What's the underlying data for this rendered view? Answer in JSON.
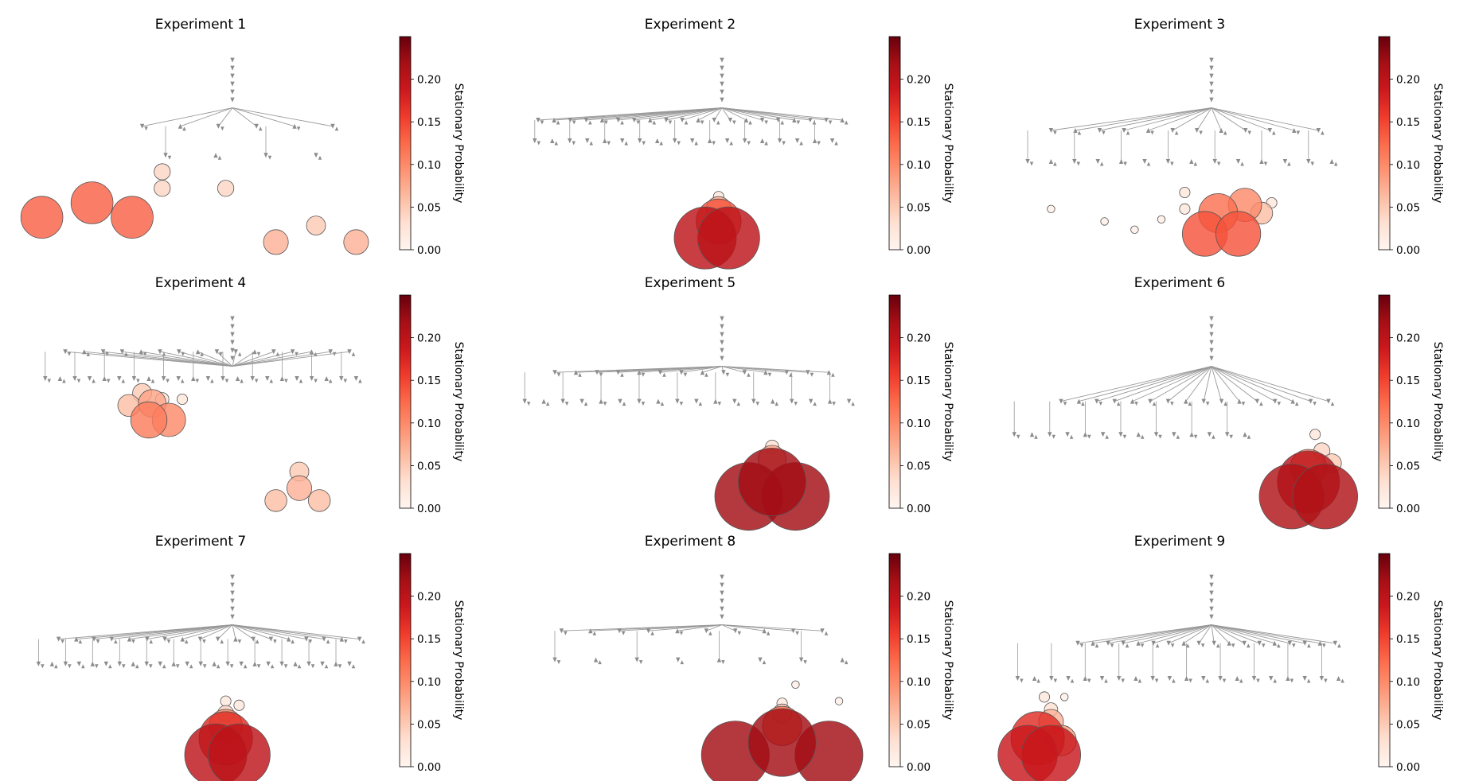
{
  "colors": {
    "edge": "#999999",
    "arrowhead": "#8c8c8c",
    "node_outline": "#555555",
    "colormap": [
      "#fff5f0",
      "#fee0d2",
      "#fcbba1",
      "#fc9272",
      "#fb6a4a",
      "#ef3b2c",
      "#cb181d",
      "#a50f15",
      "#67000d"
    ]
  },
  "chart_data": [
    {
      "type": "network",
      "title": "Experiment 1",
      "colorbar": {
        "label": "Stationary Probability",
        "range": [
          0,
          0.25
        ],
        "ticks": [
          "0.00",
          "0.05",
          "0.10",
          "0.15",
          "0.20"
        ]
      },
      "tree_rows": [
        {
          "y": 0.38,
          "count": 6,
          "span": [
            0.33,
            0.9
          ]
        },
        {
          "y": 0.52,
          "count": 4,
          "span": [
            0.4,
            0.85
          ]
        }
      ],
      "top_nodes": [
        {
          "x": 0.03,
          "y": 0.82,
          "p": 0.13
        },
        {
          "x": 0.18,
          "y": 0.75,
          "p": 0.13
        },
        {
          "x": 0.3,
          "y": 0.82,
          "p": 0.13
        },
        {
          "x": 0.39,
          "y": 0.6,
          "p": 0.04
        },
        {
          "x": 0.39,
          "y": 0.68,
          "p": 0.04
        },
        {
          "x": 0.58,
          "y": 0.68,
          "p": 0.04
        },
        {
          "x": 0.73,
          "y": 0.94,
          "p": 0.07
        },
        {
          "x": 0.85,
          "y": 0.86,
          "p": 0.05
        },
        {
          "x": 0.97,
          "y": 0.94,
          "p": 0.07
        }
      ]
    },
    {
      "type": "network",
      "title": "Experiment 2",
      "colorbar": {
        "label": "Stationary Probability",
        "range": [
          0,
          0.25
        ],
        "ticks": [
          "0.00",
          "0.05",
          "0.10",
          "0.15",
          "0.20"
        ]
      },
      "tree_rows": [
        {
          "y": 0.35,
          "count": 20,
          "span": [
            0.05,
            0.96
          ]
        },
        {
          "y": 0.45,
          "count": 18,
          "span": [
            0.04,
            0.93
          ]
        }
      ],
      "top_nodes": [
        {
          "x": 0.55,
          "y": 0.92,
          "p": 0.2
        },
        {
          "x": 0.62,
          "y": 0.92,
          "p": 0.2
        },
        {
          "x": 0.59,
          "y": 0.84,
          "p": 0.14
        },
        {
          "x": 0.59,
          "y": 0.78,
          "p": 0.07
        },
        {
          "x": 0.59,
          "y": 0.72,
          "p": 0.02
        }
      ]
    },
    {
      "type": "network",
      "title": "Experiment 3",
      "colorbar": {
        "label": "Stationary Probability",
        "range": [
          0,
          0.25
        ],
        "ticks": [
          "0.00",
          "0.05",
          "0.10",
          "0.15",
          "0.20"
        ]
      },
      "tree_rows": [
        {
          "y": 0.4,
          "count": 12,
          "span": [
            0.12,
            0.92
          ]
        },
        {
          "y": 0.55,
          "count": 14,
          "span": [
            0.05,
            0.96
          ]
        }
      ],
      "top_nodes": [
        {
          "x": 0.58,
          "y": 0.9,
          "p": 0.14
        },
        {
          "x": 0.68,
          "y": 0.9,
          "p": 0.14
        },
        {
          "x": 0.62,
          "y": 0.8,
          "p": 0.12
        },
        {
          "x": 0.7,
          "y": 0.76,
          "p": 0.1
        },
        {
          "x": 0.75,
          "y": 0.8,
          "p": 0.06
        },
        {
          "x": 0.78,
          "y": 0.75,
          "p": 0.02
        },
        {
          "x": 0.52,
          "y": 0.7,
          "p": 0.02
        },
        {
          "x": 0.52,
          "y": 0.78,
          "p": 0.02
        },
        {
          "x": 0.12,
          "y": 0.78,
          "p": 0.01
        },
        {
          "x": 0.28,
          "y": 0.84,
          "p": 0.01
        },
        {
          "x": 0.37,
          "y": 0.88,
          "p": 0.01
        },
        {
          "x": 0.45,
          "y": 0.83,
          "p": 0.01
        }
      ]
    },
    {
      "type": "network",
      "title": "Experiment 4",
      "colorbar": {
        "label": "Stationary Probability",
        "range": [
          0,
          0.25
        ],
        "ticks": [
          "0.00",
          "0.05",
          "0.10",
          "0.15",
          "0.20"
        ]
      },
      "tree_rows": [
        {
          "y": 0.22,
          "count": 16,
          "span": [
            0.1,
            0.95
          ]
        },
        {
          "y": 0.35,
          "count": 22,
          "span": [
            0.04,
            0.97
          ]
        }
      ],
      "top_nodes": [
        {
          "x": 0.33,
          "y": 0.42,
          "p": 0.05
        },
        {
          "x": 0.36,
          "y": 0.47,
          "p": 0.08
        },
        {
          "x": 0.29,
          "y": 0.48,
          "p": 0.06
        },
        {
          "x": 0.39,
          "y": 0.45,
          "p": 0.03
        },
        {
          "x": 0.35,
          "y": 0.55,
          "p": 0.11
        },
        {
          "x": 0.41,
          "y": 0.55,
          "p": 0.1
        },
        {
          "x": 0.45,
          "y": 0.45,
          "p": 0.02
        },
        {
          "x": 0.8,
          "y": 0.8,
          "p": 0.05
        },
        {
          "x": 0.73,
          "y": 0.94,
          "p": 0.06
        },
        {
          "x": 0.8,
          "y": 0.88,
          "p": 0.07
        },
        {
          "x": 0.86,
          "y": 0.94,
          "p": 0.06
        }
      ]
    },
    {
      "type": "network",
      "title": "Experiment 5",
      "colorbar": {
        "label": "Stationary Probability",
        "range": [
          0,
          0.25
        ],
        "ticks": [
          "0.00",
          "0.05",
          "0.10",
          "0.15",
          "0.20"
        ]
      },
      "tree_rows": [
        {
          "y": 0.32,
          "count": 14,
          "span": [
            0.1,
            0.92
          ]
        },
        {
          "y": 0.46,
          "count": 18,
          "span": [
            0.01,
            0.98
          ]
        }
      ],
      "top_nodes": [
        {
          "x": 0.68,
          "y": 0.92,
          "p": 0.22
        },
        {
          "x": 0.82,
          "y": 0.92,
          "p": 0.22
        },
        {
          "x": 0.75,
          "y": 0.85,
          "p": 0.22
        },
        {
          "x": 0.75,
          "y": 0.74,
          "p": 0.08
        },
        {
          "x": 0.75,
          "y": 0.68,
          "p": 0.03
        }
      ]
    },
    {
      "type": "network",
      "title": "Experiment 6",
      "colorbar": {
        "label": "Stationary Probability",
        "range": [
          0,
          0.25
        ],
        "ticks": [
          "0.00",
          "0.05",
          "0.10",
          "0.15",
          "0.20"
        ]
      },
      "tree_rows": [
        {
          "y": 0.46,
          "count": 16,
          "span": [
            0.15,
            0.95
          ]
        },
        {
          "y": 0.62,
          "count": 14,
          "span": [
            0.01,
            0.7
          ]
        }
      ],
      "top_nodes": [
        {
          "x": 0.84,
          "y": 0.92,
          "p": 0.21
        },
        {
          "x": 0.94,
          "y": 0.92,
          "p": 0.21
        },
        {
          "x": 0.89,
          "y": 0.85,
          "p": 0.2
        },
        {
          "x": 0.89,
          "y": 0.78,
          "p": 0.11
        },
        {
          "x": 0.96,
          "y": 0.76,
          "p": 0.05
        },
        {
          "x": 0.93,
          "y": 0.7,
          "p": 0.04
        },
        {
          "x": 0.91,
          "y": 0.62,
          "p": 0.02
        }
      ]
    },
    {
      "type": "network",
      "title": "Experiment 7",
      "colorbar": {
        "label": "Stationary Probability",
        "range": [
          0,
          0.25
        ],
        "ticks": [
          "0.00",
          "0.05",
          "0.10",
          "0.15",
          "0.20"
        ]
      },
      "tree_rows": [
        {
          "y": 0.36,
          "count": 18,
          "span": [
            0.08,
            0.98
          ]
        },
        {
          "y": 0.48,
          "count": 24,
          "span": [
            0.02,
            0.95
          ]
        }
      ],
      "top_nodes": [
        {
          "x": 0.55,
          "y": 0.92,
          "p": 0.2
        },
        {
          "x": 0.62,
          "y": 0.92,
          "p": 0.2
        },
        {
          "x": 0.58,
          "y": 0.84,
          "p": 0.17
        },
        {
          "x": 0.58,
          "y": 0.78,
          "p": 0.1
        },
        {
          "x": 0.58,
          "y": 0.72,
          "p": 0.04
        },
        {
          "x": 0.58,
          "y": 0.66,
          "p": 0.02
        },
        {
          "x": 0.62,
          "y": 0.68,
          "p": 0.02
        }
      ]
    },
    {
      "type": "network",
      "title": "Experiment 8",
      "colorbar": {
        "label": "Stationary Probability",
        "range": [
          0,
          0.25
        ],
        "ticks": [
          "0.00",
          "0.05",
          "0.10",
          "0.15",
          "0.20"
        ]
      },
      "tree_rows": [
        {
          "y": 0.32,
          "count": 10,
          "span": [
            0.12,
            0.9
          ]
        },
        {
          "y": 0.46,
          "count": 8,
          "span": [
            0.1,
            0.96
          ]
        }
      ],
      "top_nodes": [
        {
          "x": 0.64,
          "y": 0.92,
          "p": 0.22
        },
        {
          "x": 0.92,
          "y": 0.92,
          "p": 0.22
        },
        {
          "x": 0.78,
          "y": 0.86,
          "p": 0.22
        },
        {
          "x": 0.78,
          "y": 0.78,
          "p": 0.12
        },
        {
          "x": 0.78,
          "y": 0.72,
          "p": 0.05
        },
        {
          "x": 0.78,
          "y": 0.67,
          "p": 0.02
        },
        {
          "x": 0.82,
          "y": 0.58,
          "p": 0.01
        },
        {
          "x": 0.95,
          "y": 0.66,
          "p": 0.01
        }
      ]
    },
    {
      "type": "network",
      "title": "Experiment 9",
      "colorbar": {
        "label": "Stationary Probability",
        "range": [
          0,
          0.25
        ],
        "ticks": [
          "0.00",
          "0.05",
          "0.10",
          "0.15",
          "0.20"
        ]
      },
      "tree_rows": [
        {
          "y": 0.38,
          "count": 18,
          "span": [
            0.2,
            0.97
          ]
        },
        {
          "y": 0.55,
          "count": 20,
          "span": [
            0.02,
            0.98
          ]
        }
      ],
      "top_nodes": [
        {
          "x": 0.05,
          "y": 0.92,
          "p": 0.19
        },
        {
          "x": 0.12,
          "y": 0.92,
          "p": 0.19
        },
        {
          "x": 0.08,
          "y": 0.84,
          "p": 0.17
        },
        {
          "x": 0.15,
          "y": 0.85,
          "p": 0.09
        },
        {
          "x": 0.12,
          "y": 0.76,
          "p": 0.07
        },
        {
          "x": 0.12,
          "y": 0.7,
          "p": 0.03
        },
        {
          "x": 0.1,
          "y": 0.64,
          "p": 0.02
        },
        {
          "x": 0.16,
          "y": 0.64,
          "p": 0.01
        }
      ]
    }
  ]
}
